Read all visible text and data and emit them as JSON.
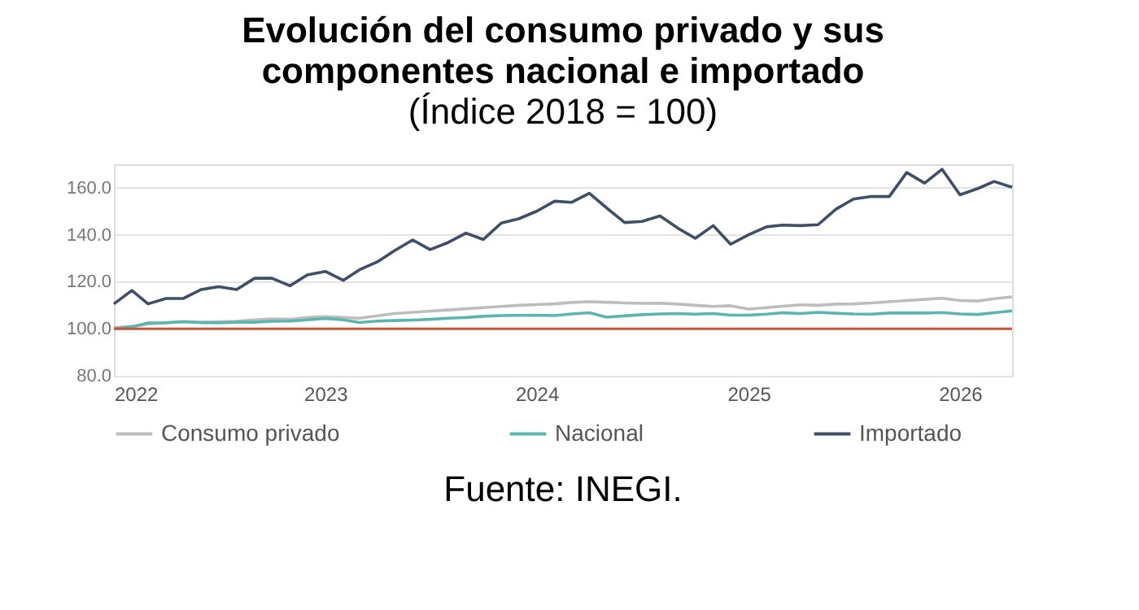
{
  "chart_data": {
    "type": "line",
    "title": "Evolución del consumo privado y sus componentes nacional e importado",
    "subtitle": "(Índice 2018 = 100)",
    "annotations": [
      "Fuente: INEGI."
    ],
    "x": [
      "2022-01",
      "2022-02",
      "2022-03",
      "2022-04",
      "2022-05",
      "2022-06",
      "2022-07",
      "2022-08",
      "2022-09",
      "2022-10",
      "2022-11",
      "2022-12",
      "2023-01",
      "2023-02",
      "2023-03",
      "2023-04",
      "2023-05",
      "2023-06",
      "2023-07",
      "2023-08",
      "2023-09",
      "2023-10",
      "2023-11",
      "2023-12",
      "2024-01",
      "2024-02",
      "2024-03",
      "2024-04",
      "2024-05",
      "2024-06",
      "2024-07",
      "2024-08",
      "2024-09",
      "2024-10",
      "2024-11",
      "2024-12",
      "2025-01",
      "2025-02",
      "2025-03",
      "2025-04",
      "2025-05",
      "2025-06",
      "2025-07",
      "2025-08",
      "2025-09",
      "2025-10",
      "2025-11",
      "2025-12",
      "2026-01",
      "2026-02",
      "2026-03",
      "2026-04"
    ],
    "series": [
      {
        "name": "Consumo privado",
        "color": "#bdbdbd",
        "values": [
          100.5,
          101,
          102,
          102.5,
          103,
          102.8,
          103,
          103.2,
          103.8,
          104.2,
          104,
          104.8,
          105.2,
          104.8,
          104.5,
          105.5,
          106.5,
          107,
          107.5,
          108,
          108.5,
          109,
          109.5,
          110,
          110.3,
          110.6,
          111.2,
          111.5,
          111.3,
          111.0,
          110.8,
          110.9,
          110.5,
          110.0,
          109.5,
          109.8,
          108.4,
          109,
          109.6,
          110.2,
          110,
          110.5,
          110.6,
          111,
          111.5,
          112,
          112.5,
          113,
          112,
          111.8,
          112.8,
          113.6
        ]
      },
      {
        "name": "Nacional",
        "color": "#5bb5b0",
        "values": [
          100,
          100.8,
          102.5,
          102.6,
          103,
          102.6,
          102.5,
          102.8,
          102.8,
          103.2,
          103.3,
          103.8,
          104.4,
          103.8,
          102.7,
          103.3,
          103.5,
          103.7,
          104,
          104.5,
          104.8,
          105.3,
          105.6,
          105.7,
          105.8,
          105.6,
          106.3,
          106.8,
          104.9,
          105.5,
          106,
          106.3,
          106.5,
          106.2,
          106.5,
          105.8,
          105.8,
          106.2,
          106.8,
          106.5,
          107,
          106.6,
          106.3,
          106.2,
          106.7,
          106.8,
          106.7,
          106.9,
          106.3,
          106.1,
          106.8,
          107.6
        ]
      },
      {
        "name": "Importado",
        "color": "#3e4f66",
        "values": [
          110.6,
          116.3,
          110.6,
          112.9,
          112.9,
          116.7,
          117.9,
          116.7,
          121.5,
          121.5,
          118.3,
          122.9,
          124.4,
          120.6,
          125.1,
          128.5,
          133.3,
          137.8,
          133.7,
          136.7,
          140.7,
          138.0,
          145.0,
          146.8,
          150.0,
          154.3,
          153.8,
          157.7,
          151.4,
          145.2,
          145.7,
          148.0,
          142.8,
          138.5,
          143.9,
          136.0,
          140.0,
          143.4,
          144.1,
          143.9,
          144.3,
          150.9,
          155.2,
          156.3,
          156.3,
          166.5,
          162.0,
          167.9,
          157.0,
          159.7,
          162.7,
          160.2
        ]
      }
    ],
    "xlim": [
      "2022-01",
      "2026-04"
    ],
    "xticks": [
      {
        "value": "2022-01",
        "label": "2022"
      },
      {
        "value": "2023-01",
        "label": "2023"
      },
      {
        "value": "2024-01",
        "label": "2024"
      },
      {
        "value": "2025-01",
        "label": "2025"
      },
      {
        "value": "2026-01",
        "label": "2026"
      }
    ],
    "ylim": [
      80,
      170
    ],
    "yticks": [
      {
        "value": 80,
        "label": "80.0"
      },
      {
        "value": 100,
        "label": "100.0"
      },
      {
        "value": 120,
        "label": "120.0"
      },
      {
        "value": 140,
        "label": "140.0"
      },
      {
        "value": 160,
        "label": "160.0"
      }
    ],
    "ref_lines": [
      {
        "axis": "y",
        "value": 100,
        "color": "#c8553d"
      }
    ],
    "grid": "y",
    "legend": "bottom",
    "line_style": "solid",
    "marker": "none"
  }
}
